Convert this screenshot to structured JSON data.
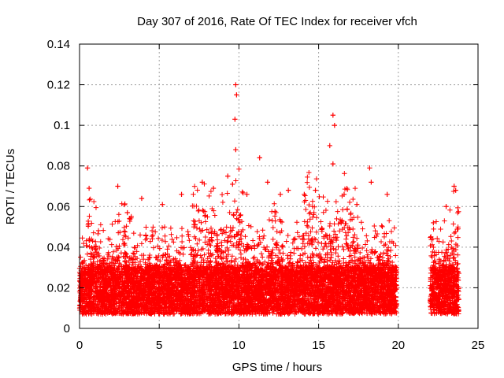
{
  "chart_data": {
    "type": "scatter",
    "title": "Day 307 of 2016, Rate Of TEC Index for receiver vfch",
    "xlabel": "GPS time / hours",
    "ylabel": "ROTI / TECUs",
    "xlim": [
      0,
      25
    ],
    "ylim": [
      0,
      0.14
    ],
    "x_ticks": [
      0,
      5,
      10,
      15,
      20,
      25
    ],
    "x_tick_labels": [
      "0",
      "5",
      "10",
      "15",
      "20",
      "25"
    ],
    "y_ticks": [
      0,
      0.02,
      0.04,
      0.06,
      0.08,
      0.1,
      0.12,
      0.14
    ],
    "y_tick_labels": [
      "0",
      "0.02",
      "0.04",
      "0.06",
      "0.08",
      "0.1",
      "0.12",
      "0.14"
    ],
    "grid": true,
    "marker": "+",
    "color": "#ff0000",
    "data_gaps_hours": [
      [
        19.9,
        22.0
      ]
    ],
    "series": [
      {
        "name": "ROTI",
        "baseline_range": [
          0.007,
          0.03
        ],
        "highlight_points": [
          {
            "x": 0.5,
            "y": 0.079
          },
          {
            "x": 0.6,
            "y": 0.069
          },
          {
            "x": 2.4,
            "y": 0.07
          },
          {
            "x": 3.0,
            "y": 0.057
          },
          {
            "x": 3.9,
            "y": 0.064
          },
          {
            "x": 5.2,
            "y": 0.061
          },
          {
            "x": 6.4,
            "y": 0.066
          },
          {
            "x": 7.7,
            "y": 0.072
          },
          {
            "x": 8.4,
            "y": 0.069
          },
          {
            "x": 9.3,
            "y": 0.075
          },
          {
            "x": 9.6,
            "y": 0.071
          },
          {
            "x": 9.8,
            "y": 0.12
          },
          {
            "x": 9.85,
            "y": 0.115
          },
          {
            "x": 9.75,
            "y": 0.103
          },
          {
            "x": 9.8,
            "y": 0.088
          },
          {
            "x": 10.5,
            "y": 0.066
          },
          {
            "x": 11.3,
            "y": 0.084
          },
          {
            "x": 11.8,
            "y": 0.072
          },
          {
            "x": 12.6,
            "y": 0.066
          },
          {
            "x": 13.1,
            "y": 0.068
          },
          {
            "x": 14.1,
            "y": 0.066
          },
          {
            "x": 14.8,
            "y": 0.068
          },
          {
            "x": 15.7,
            "y": 0.09
          },
          {
            "x": 15.9,
            "y": 0.105
          },
          {
            "x": 16.0,
            "y": 0.1
          },
          {
            "x": 15.9,
            "y": 0.081
          },
          {
            "x": 16.6,
            "y": 0.066
          },
          {
            "x": 17.4,
            "y": 0.061
          },
          {
            "x": 18.2,
            "y": 0.079
          },
          {
            "x": 18.3,
            "y": 0.072
          },
          {
            "x": 19.3,
            "y": 0.066
          },
          {
            "x": 22.2,
            "y": 0.052
          },
          {
            "x": 23.0,
            "y": 0.06
          },
          {
            "x": 23.5,
            "y": 0.07
          },
          {
            "x": 23.6,
            "y": 0.068
          }
        ]
      }
    ]
  }
}
